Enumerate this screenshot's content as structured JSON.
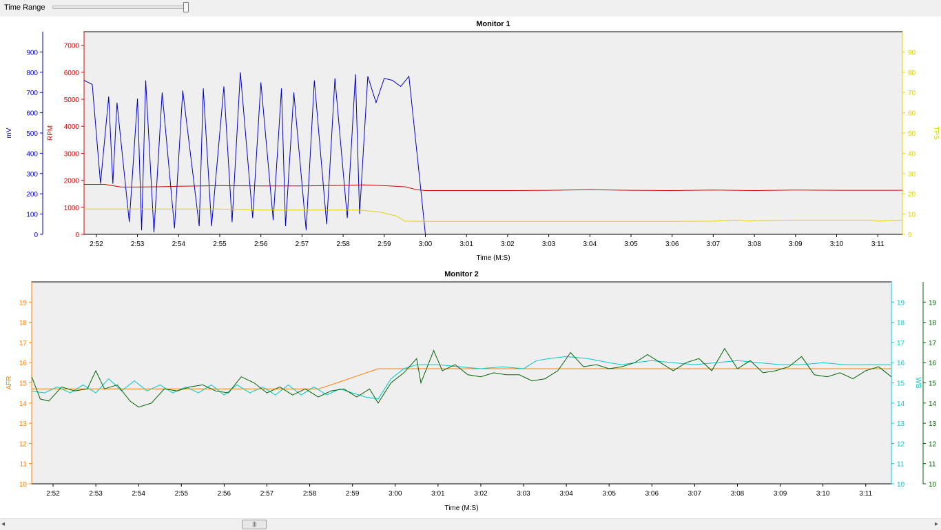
{
  "toolbar": {
    "time_range_label": "Time Range",
    "slider_value": 1.0
  },
  "scrollbar": {
    "left_arrow": "◂",
    "right_arrow": "▸",
    "thumb_grip": "|||",
    "position": 0.26
  },
  "chart_data": [
    {
      "type": "line",
      "title": "Monitor 1",
      "xlabel": "Time (M:S)",
      "xlim": [
        171.7,
        191.6
      ],
      "xticks": [
        "2:52",
        "2:53",
        "2:54",
        "2:55",
        "2:56",
        "2:57",
        "2:58",
        "2:59",
        "3:00",
        "3:01",
        "3:02",
        "3:03",
        "3:04",
        "3:05",
        "3:06",
        "3:07",
        "3:08",
        "3:09",
        "3:10",
        "3:11"
      ],
      "axes": [
        {
          "id": "mv",
          "label": "mV",
          "color": "#0000c8",
          "side": "left",
          "range": [
            0,
            1000
          ],
          "ticks": [
            0,
            100,
            200,
            300,
            400,
            500,
            600,
            700,
            800,
            900
          ]
        },
        {
          "id": "rpm",
          "label": "RPM",
          "color": "#d40000",
          "side": "left",
          "range": [
            0,
            7500
          ],
          "ticks": [
            0,
            1000,
            2000,
            3000,
            4000,
            5000,
            6000,
            7000
          ]
        },
        {
          "id": "tps",
          "label": "TPS",
          "color": "#e0d000",
          "side": "right",
          "range": [
            0,
            100
          ],
          "ticks": [
            0,
            10,
            20,
            30,
            40,
            50,
            60,
            70,
            80,
            90
          ]
        }
      ],
      "series": [
        {
          "axis": "mv",
          "color": "#0000c8",
          "x": [
            171.7,
            171.9,
            172.1,
            172.3,
            172.4,
            172.5,
            172.8,
            173.0,
            173.1,
            173.2,
            173.4,
            173.6,
            173.9,
            174.1,
            174.5,
            174.6,
            174.8,
            175.1,
            175.3,
            175.5,
            175.8,
            176.0,
            176.3,
            176.5,
            176.6,
            176.8,
            177.1,
            177.3,
            177.6,
            177.8,
            178.1,
            178.3,
            178.4,
            178.6,
            178.8,
            179.0,
            179.2,
            179.4,
            179.6,
            179.9,
            180.0
          ],
          "y": [
            760,
            740,
            250,
            680,
            250,
            650,
            60,
            670,
            20,
            760,
            10,
            700,
            30,
            710,
            40,
            720,
            40,
            730,
            60,
            800,
            80,
            750,
            70,
            720,
            40,
            700,
            20,
            760,
            50,
            770,
            80,
            790,
            100,
            780,
            650,
            770,
            760,
            730,
            780,
            200,
            0
          ]
        },
        {
          "axis": "rpm",
          "color": "#d40000",
          "x": [
            171.7,
            172.2,
            172.6,
            173.0,
            173.5,
            174.0,
            175.0,
            176.0,
            177.0,
            178.0,
            178.5,
            179.0,
            179.5,
            179.8,
            180.0,
            181.0,
            182.0,
            183.0,
            184.0,
            185.0,
            186.0,
            187.0,
            188.0,
            189.0,
            190.0,
            191.6
          ],
          "y": [
            1850,
            1850,
            1750,
            1750,
            1760,
            1780,
            1800,
            1790,
            1790,
            1810,
            1830,
            1800,
            1760,
            1650,
            1620,
            1620,
            1620,
            1630,
            1650,
            1630,
            1620,
            1640,
            1620,
            1640,
            1630,
            1630
          ]
        },
        {
          "axis": "tps",
          "color": "#e0d000",
          "x": [
            171.7,
            175.0,
            176.0,
            177.0,
            178.4,
            178.9,
            179.3,
            179.5,
            180.0,
            184.0,
            186.0,
            187.0,
            187.5,
            187.9,
            188.0,
            189.0,
            190.8,
            191.0,
            191.6
          ],
          "y": [
            12.5,
            12.5,
            12.0,
            12.0,
            12.0,
            11.0,
            9.0,
            6.5,
            6.4,
            6.4,
            6.4,
            6.5,
            7.0,
            6.5,
            6.8,
            7.0,
            7.0,
            6.5,
            7.0
          ]
        }
      ]
    },
    {
      "type": "line",
      "title": "Monitor 2",
      "xlabel": "Time (M:S)",
      "xlim": [
        171.5,
        191.6
      ],
      "xticks": [
        "2:52",
        "2:53",
        "2:54",
        "2:55",
        "2:56",
        "2:57",
        "2:58",
        "2:59",
        "3:00",
        "3:01",
        "3:02",
        "3:03",
        "3:04",
        "3:05",
        "3:06",
        "3:07",
        "3:08",
        "3:09",
        "3:10",
        "3:11"
      ],
      "axes": [
        {
          "id": "afr",
          "label": "AFR",
          "color": "#ff7f00",
          "side": "left",
          "range": [
            10,
            20
          ],
          "ticks": [
            10,
            11,
            12,
            13,
            14,
            15,
            16,
            17,
            18,
            19
          ]
        },
        {
          "id": "wb",
          "label": "WB",
          "color": "#00c8c8",
          "side": "right",
          "range": [
            10,
            20
          ],
          "ticks": [
            10,
            11,
            12,
            13,
            14,
            15,
            16,
            17,
            18,
            19
          ]
        },
        {
          "id": "wb2",
          "label": "",
          "color": "#006400",
          "side": "right-outer",
          "range": [
            10,
            20
          ],
          "ticks": [
            10,
            11,
            12,
            13,
            14,
            15,
            16,
            17,
            18,
            19
          ]
        }
      ],
      "series": [
        {
          "axis": "afr",
          "color": "#ff7f00",
          "x": [
            171.5,
            178.2,
            178.5,
            179.6,
            191.6
          ],
          "y": [
            14.7,
            14.7,
            14.9,
            15.7,
            15.7
          ]
        },
        {
          "axis": "wb",
          "color": "#00c8c8",
          "x": [
            171.5,
            171.8,
            172.1,
            172.4,
            172.7,
            173.0,
            173.3,
            173.6,
            173.9,
            174.2,
            174.5,
            174.8,
            175.1,
            175.4,
            175.7,
            176.0,
            176.3,
            176.6,
            176.9,
            177.2,
            177.5,
            177.8,
            178.1,
            178.4,
            178.7,
            179.0,
            179.3,
            179.6,
            179.9,
            180.2,
            180.5,
            181.0,
            181.5,
            182.0,
            182.5,
            183.0,
            183.3,
            183.6,
            184.0,
            184.5,
            185.0,
            185.3,
            185.6,
            186.0,
            186.5,
            187.0,
            187.5,
            188.0,
            188.5,
            189.0,
            189.5,
            190.0,
            190.5,
            191.0,
            191.6
          ],
          "y": [
            14.6,
            14.5,
            14.8,
            14.5,
            14.9,
            14.5,
            15.2,
            14.6,
            15.1,
            14.6,
            14.9,
            14.5,
            14.8,
            14.5,
            14.9,
            14.4,
            14.9,
            14.5,
            14.8,
            14.4,
            14.9,
            14.4,
            14.8,
            14.4,
            14.7,
            14.5,
            14.3,
            14.2,
            15.2,
            15.7,
            15.9,
            15.9,
            15.8,
            15.7,
            15.8,
            15.7,
            16.1,
            16.2,
            16.3,
            16.2,
            16.0,
            15.9,
            16.0,
            16.1,
            16.0,
            15.9,
            16.0,
            16.1,
            16.0,
            15.9,
            15.9,
            16.0,
            15.9,
            15.9,
            15.9
          ]
        },
        {
          "axis": "wb2",
          "color": "#006400",
          "x": [
            171.5,
            171.7,
            171.9,
            172.2,
            172.5,
            172.8,
            173.0,
            173.2,
            173.5,
            173.8,
            174.0,
            174.3,
            174.6,
            174.9,
            175.2,
            175.5,
            175.8,
            176.1,
            176.4,
            176.7,
            177.0,
            177.3,
            177.6,
            177.9,
            178.2,
            178.5,
            178.8,
            179.1,
            179.4,
            179.6,
            179.9,
            180.2,
            180.5,
            180.6,
            180.9,
            181.1,
            181.4,
            181.7,
            182.0,
            182.3,
            182.6,
            182.9,
            183.2,
            183.5,
            183.8,
            184.1,
            184.4,
            184.7,
            185.0,
            185.3,
            185.6,
            185.9,
            186.2,
            186.5,
            186.8,
            187.1,
            187.4,
            187.7,
            188.0,
            188.3,
            188.6,
            188.9,
            189.2,
            189.5,
            189.8,
            190.1,
            190.4,
            190.7,
            191.0,
            191.3,
            191.6
          ],
          "y": [
            15.3,
            14.2,
            14.1,
            14.8,
            14.6,
            14.7,
            15.6,
            14.7,
            14.9,
            14.1,
            13.8,
            14.0,
            14.7,
            14.6,
            14.8,
            14.9,
            14.6,
            14.5,
            15.3,
            15.0,
            14.5,
            14.8,
            14.4,
            14.7,
            14.3,
            14.6,
            14.7,
            14.3,
            14.7,
            14.0,
            15.0,
            15.5,
            16.2,
            15.0,
            16.6,
            15.6,
            15.9,
            15.4,
            15.3,
            15.5,
            15.4,
            15.4,
            15.1,
            15.2,
            15.6,
            16.5,
            15.8,
            15.9,
            15.7,
            15.8,
            16.0,
            16.4,
            16.0,
            15.6,
            16.0,
            16.2,
            15.6,
            16.7,
            15.7,
            16.1,
            15.5,
            15.6,
            15.8,
            16.3,
            15.4,
            15.3,
            15.5,
            15.2,
            15.6,
            15.8,
            15.3
          ]
        }
      ]
    }
  ]
}
